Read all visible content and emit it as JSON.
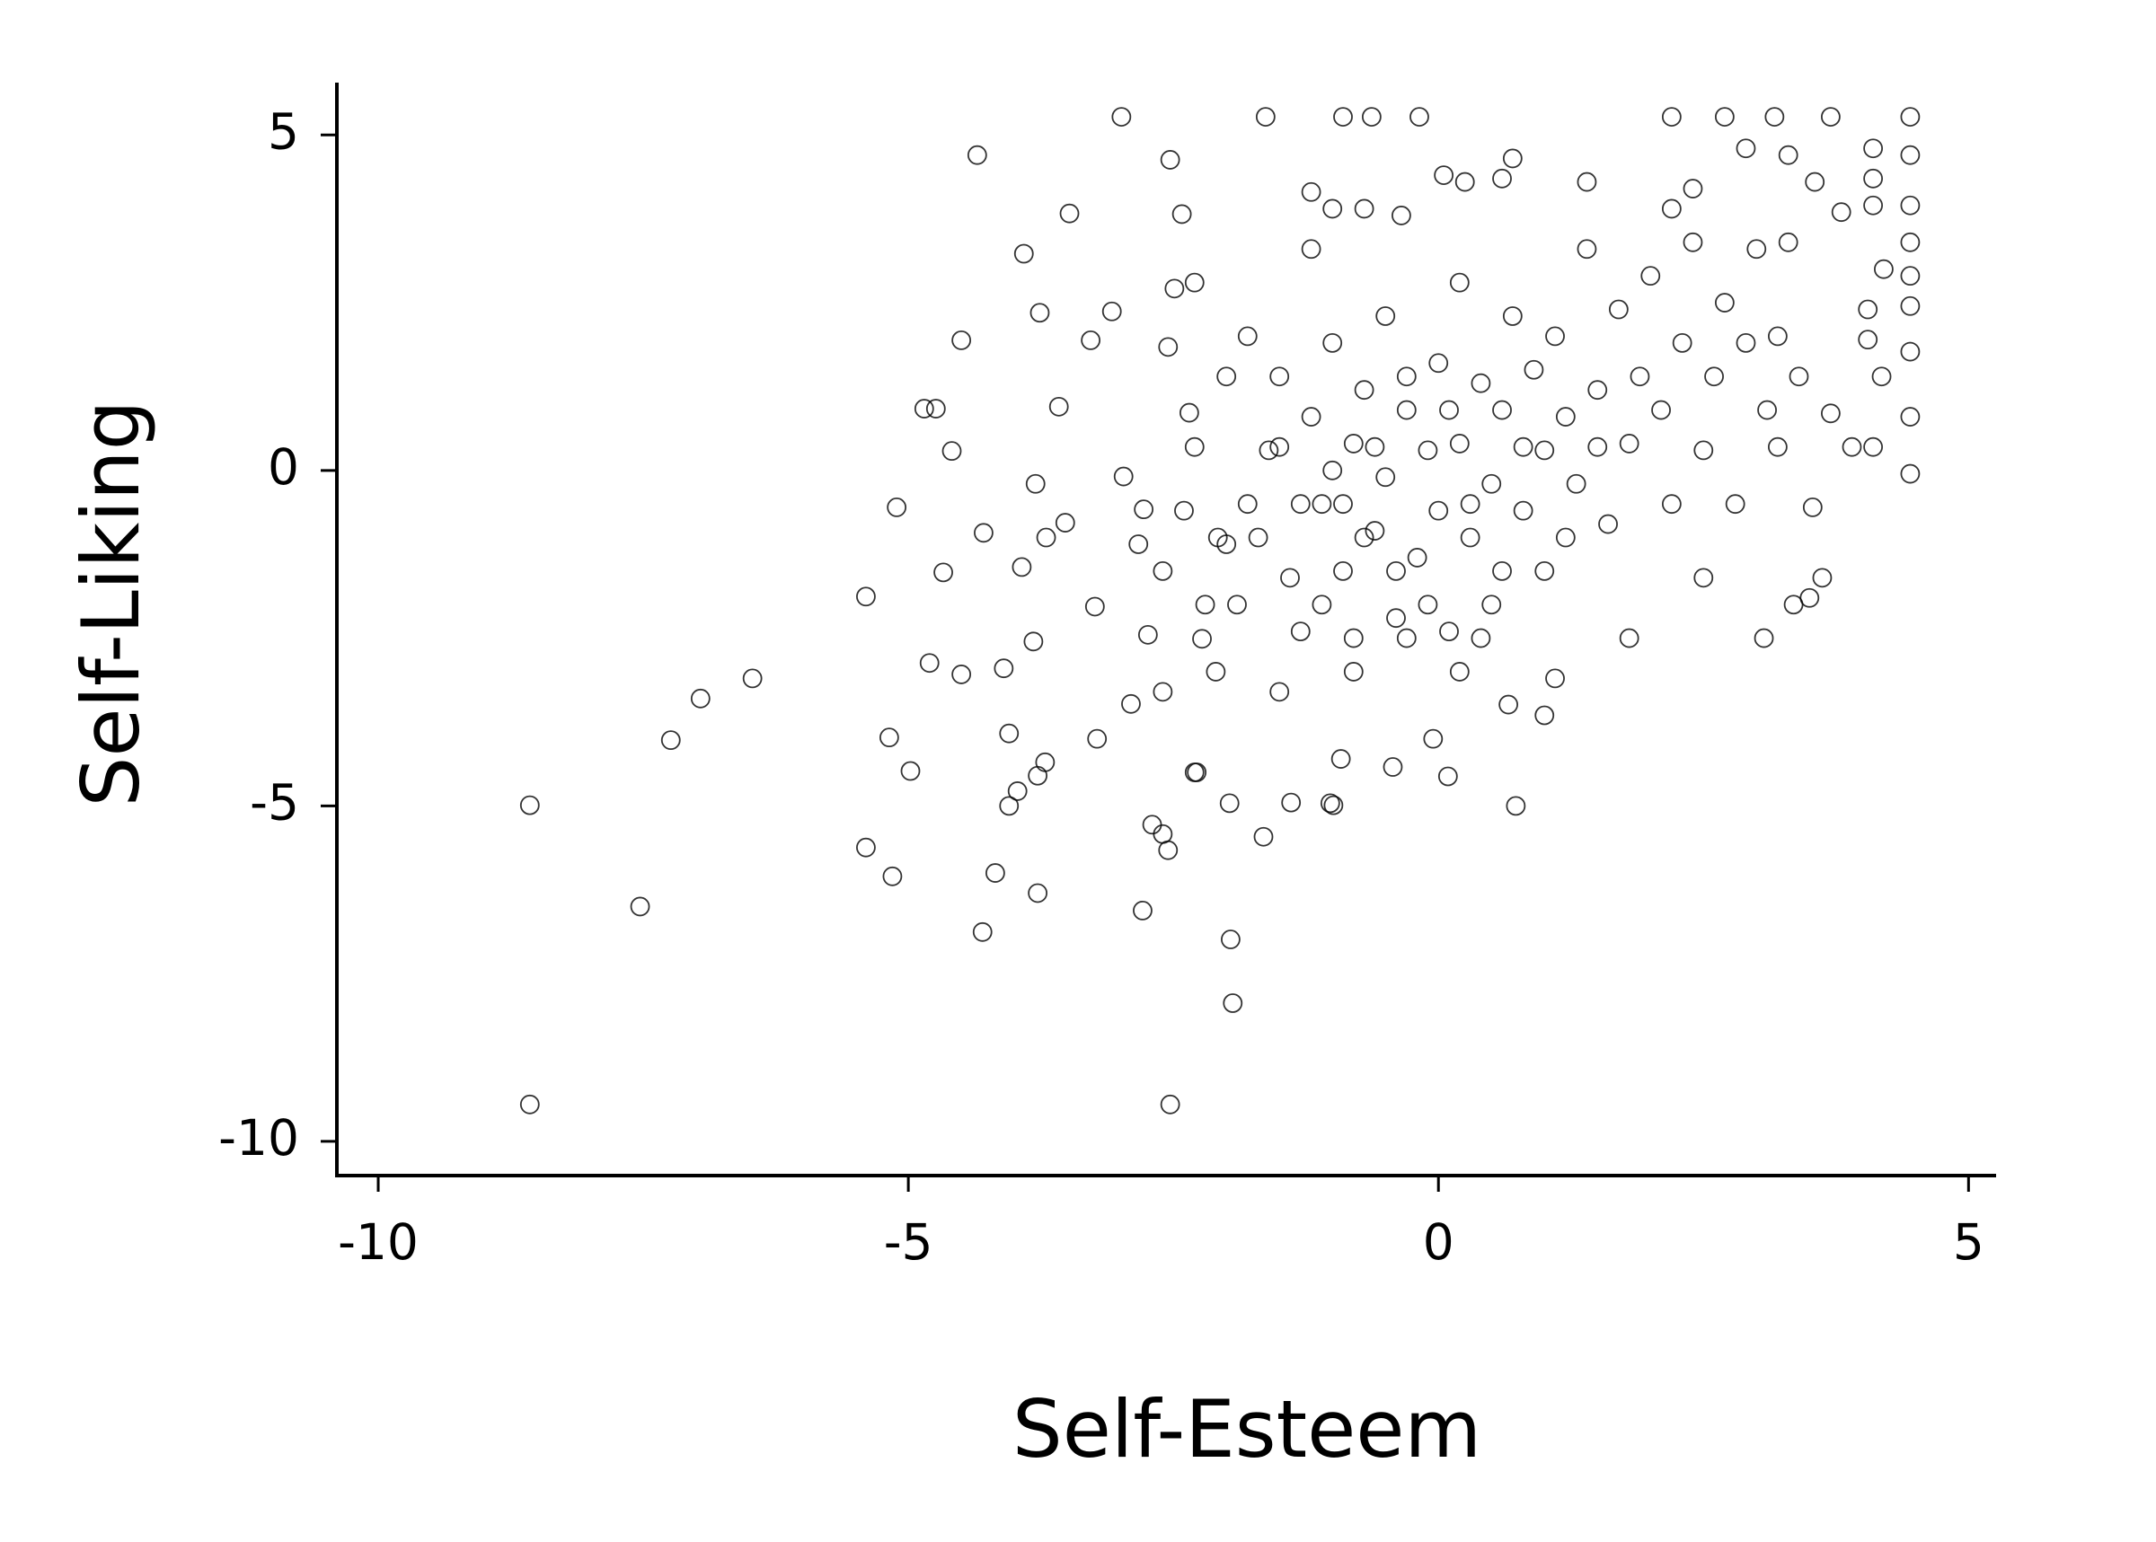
{
  "chart_data": {
    "type": "scatter",
    "x_label": "Self-Esteem",
    "y_label": "Self-Liking",
    "x": [
      -8.57,
      -8.57,
      -7.53,
      -7.24,
      -6.96,
      -6.47,
      -5.4,
      -5.4,
      -5.18,
      -5.15,
      -5.11,
      -4.98,
      -4.85,
      -4.74,
      -4.8,
      -4.67,
      -4.59,
      -4.5,
      -4.5,
      -4.35,
      -4.29,
      -4.3,
      -4.18,
      -4.1,
      -4.05,
      -4.05,
      -3.97,
      -3.82,
      -3.93,
      -3.91,
      -3.76,
      -3.8,
      -3.7,
      -3.58,
      -3.48,
      -3.52,
      -3.24,
      -3.28,
      -3.08,
      -3.22,
      -3.78,
      -3.78,
      -3.71,
      -2.97,
      -2.99,
      -2.83,
      -2.9,
      -2.6,
      -2.74,
      -2.78,
      -2.53,
      -2.55,
      -2.49,
      -2.42,
      -2.35,
      -2.23,
      -2.08,
      -2.3,
      -2.28,
      -2.79,
      -2.7,
      -2.6,
      -2.55,
      -1.96,
      -1.94,
      -2.53,
      -1.97,
      -1.65,
      -1.39,
      -0.99,
      -1.02,
      -0.92,
      -0.43,
      -0.05,
      0.09,
      0.73,
      1.0,
      0.66,
      1.1,
      3.07,
      3.35,
      3.5,
      3.53,
      3.62,
      4.45,
      4.45,
      4.45,
      4.45,
      4.45,
      4.45,
      4.45,
      4.45,
      4.45,
      -1.63,
      -0.9,
      -0.63,
      -0.18,
      2.2,
      2.7,
      3.17,
      3.7,
      4.1,
      4.1,
      4.1,
      4.2,
      4.05,
      4.05,
      4.18,
      3.9,
      4.1,
      3.7,
      3.8,
      3.55,
      3.3,
      2.9,
      2.4,
      1.4,
      0.7,
      0.6,
      0.25,
      0.05,
      -1.2,
      -1.0,
      -0.7,
      -0.35,
      -2.2,
      -2.0,
      -1.8,
      -1.6,
      -1.5,
      -1.4,
      -1.3,
      -1.2,
      -1.1,
      -1.0,
      -1.0,
      -0.9,
      -0.8,
      -0.8,
      -0.7,
      -0.6,
      -0.5,
      -0.5,
      -0.4,
      -0.3,
      -0.2,
      -0.1,
      0.0,
      0.0,
      0.1,
      0.2,
      0.2,
      0.3,
      0.4,
      0.5,
      0.5,
      0.6,
      0.7,
      0.8,
      0.9,
      1.0,
      1.0,
      1.1,
      1.2,
      1.3,
      1.4,
      1.5,
      1.6,
      1.7,
      1.8,
      1.8,
      1.9,
      2.0,
      2.1,
      2.2,
      2.3,
      2.4,
      2.5,
      2.5,
      2.6,
      2.7,
      2.8,
      2.9,
      3.0,
      3.1,
      3.2,
      3.2,
      3.3,
      3.4,
      -2.3,
      -2.0,
      -1.9,
      -1.7,
      -1.5,
      -1.3,
      -1.1,
      -0.9,
      -0.7,
      -0.6,
      -0.4,
      -0.3,
      -0.1,
      0.1,
      0.3,
      0.4,
      0.6,
      0.8,
      1.2,
      1.5,
      -2.6,
      -2.4,
      -2.1,
      -1.5,
      -0.8,
      -0.3,
      0.2,
      -2.3,
      -1.8,
      -1.2,
      2.2
    ],
    "values": [
      -4.99,
      -9.45,
      -6.5,
      -4.02,
      -3.4,
      -3.1,
      -1.88,
      -5.62,
      -3.98,
      -6.05,
      -0.55,
      -4.48,
      0.92,
      0.92,
      -2.87,
      -1.52,
      0.29,
      1.94,
      -3.04,
      4.7,
      -0.93,
      -6.88,
      -6.0,
      -2.95,
      -3.92,
      -5.0,
      -4.78,
      -2.55,
      -1.44,
      3.23,
      2.35,
      -0.2,
      -1.0,
      0.95,
      3.83,
      -0.78,
      -2.03,
      1.94,
      2.37,
      -4.0,
      -6.3,
      -4.55,
      -4.35,
      -0.09,
      5.27,
      -1.1,
      -3.48,
      -3.3,
      -2.45,
      -0.58,
      4.63,
      1.84,
      2.71,
      3.82,
      0.86,
      -2.51,
      -1.0,
      -4.5,
      -4.5,
      -6.56,
      -5.28,
      -5.42,
      -5.66,
      -6.99,
      -7.94,
      -9.45,
      -4.96,
      -5.46,
      -4.95,
      -4.99,
      -4.96,
      -4.3,
      -4.42,
      -4.0,
      -4.56,
      -5.0,
      -3.65,
      -3.49,
      -3.1,
      -2.5,
      -2.0,
      -1.9,
      -0.55,
      -1.6,
      -0.05,
      0.8,
      1.77,
      2.45,
      2.9,
      3.4,
      3.95,
      4.7,
      5.27,
      5.27,
      5.27,
      5.27,
      5.27,
      5.27,
      5.27,
      5.27,
      5.27,
      4.8,
      4.35,
      3.95,
      3.0,
      2.4,
      1.95,
      1.4,
      0.35,
      0.35,
      0.85,
      3.85,
      4.3,
      4.7,
      4.8,
      4.2,
      4.3,
      4.65,
      4.35,
      4.3,
      4.4,
      4.15,
      3.9,
      3.9,
      3.8,
      -2.0,
      -1.1,
      -0.5,
      0.3,
      1.4,
      -1.6,
      -2.4,
      0.8,
      -0.5,
      0.0,
      1.9,
      -1.5,
      -2.5,
      0.4,
      1.2,
      -0.9,
      -0.1,
      2.3,
      -2.2,
      0.9,
      -1.3,
      0.3,
      1.6,
      -0.6,
      -2.4,
      0.4,
      2.8,
      -1.0,
      1.3,
      -0.2,
      -2.0,
      0.9,
      2.3,
      -0.6,
      1.5,
      0.3,
      -1.5,
      2.0,
      0.8,
      -0.2,
      3.3,
      1.2,
      -0.8,
      2.4,
      0.4,
      -2.5,
      1.4,
      2.9,
      0.9,
      -0.5,
      1.9,
      3.4,
      0.3,
      -1.6,
      1.4,
      2.5,
      -0.5,
      1.9,
      3.3,
      0.9,
      0.35,
      2.0,
      3.4,
      1.4,
      0.35,
      1.4,
      -2.0,
      -1.0,
      0.35,
      -0.5,
      -2.0,
      -0.5,
      -1.0,
      0.35,
      -1.5,
      1.4,
      -2.0,
      0.9,
      -0.5,
      -2.5,
      -1.5,
      0.35,
      -1.0,
      0.35,
      -1.5,
      -0.6,
      -3.0,
      -3.3,
      -3.0,
      -2.5,
      -3.0,
      2.8,
      2.0,
      3.3,
      3.9
    ],
    "color": "#000000",
    "xlim": [
      -10.39,
      5.26
    ],
    "ylim": [
      -10.51,
      5.78
    ],
    "xticks": [
      -10,
      -5,
      0,
      5
    ],
    "yticks": [
      -10,
      -5,
      0,
      5
    ]
  }
}
